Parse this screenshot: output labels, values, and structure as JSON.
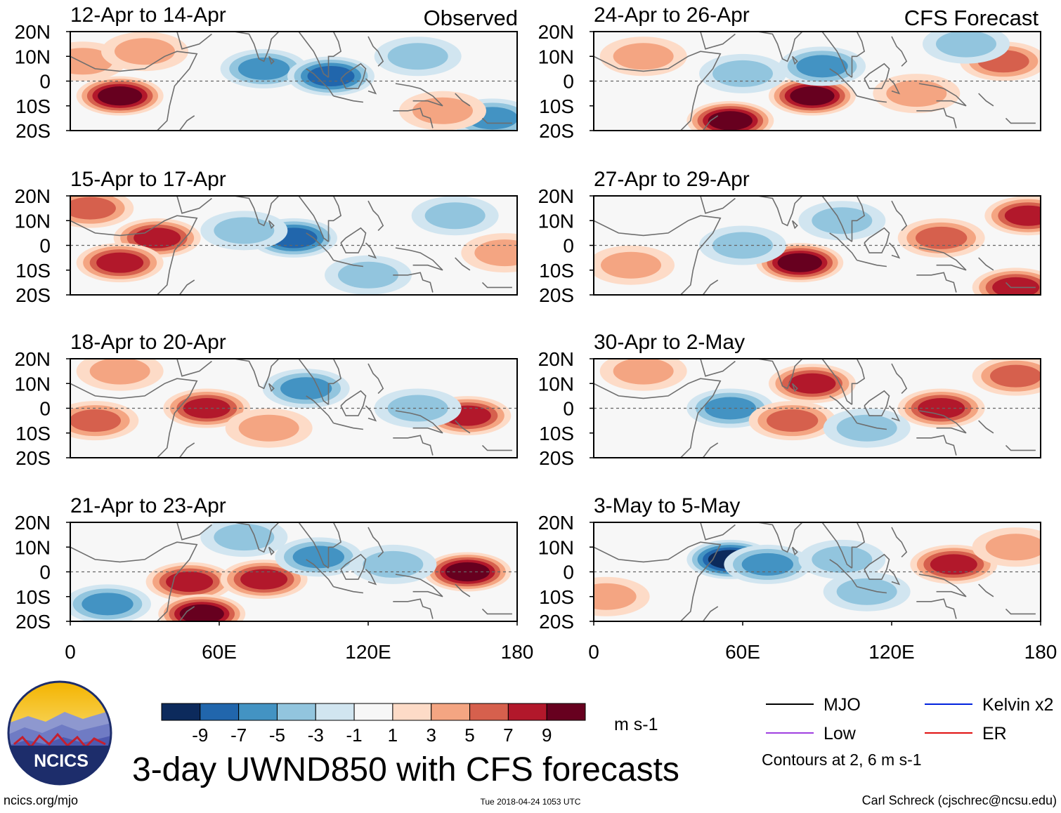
{
  "chart_data": {
    "type": "heatmap",
    "title": "3-day UWND850 with CFS forecasts",
    "variable": "UWND850",
    "units": "m s-1",
    "xlim": [
      0,
      180
    ],
    "ylim": [
      -20,
      20
    ],
    "x_ticks": [
      "0",
      "60E",
      "120E",
      "180"
    ],
    "x_tick_values": [
      0,
      60,
      120,
      180
    ],
    "y_ticks": [
      "20N",
      "10N",
      "0",
      "10S",
      "20S"
    ],
    "y_tick_values": [
      20,
      10,
      0,
      -10,
      -20
    ],
    "colorbar": {
      "levels": [
        "-9",
        "-7",
        "-5",
        "-3",
        "-1",
        "1",
        "3",
        "5",
        "7",
        "9"
      ],
      "colors": [
        "#0c2a5c",
        "#2166ac",
        "#4393c3",
        "#92c5de",
        "#d1e5f0",
        "#f7f7f7",
        "#fddbc7",
        "#f4a582",
        "#d6604d",
        "#b2182b",
        "#67001f"
      ]
    },
    "contour_note": "Contours at 2, 6 m s-1",
    "legend": [
      {
        "name": "MJO",
        "color": "#000000"
      },
      {
        "name": "Kelvin x2",
        "color": "#0022dd"
      },
      {
        "name": "Low",
        "color": "#a040e0"
      },
      {
        "name": "ER",
        "color": "#e01010"
      }
    ],
    "panels": [
      {
        "column": "Observed",
        "label": "12-Apr to 14-Apr",
        "anomalies": [
          {
            "lon": 20,
            "lat": -6,
            "v": 8
          },
          {
            "lon": 5,
            "lat": 8,
            "v": 3
          },
          {
            "lon": 30,
            "lat": 12,
            "v": 3
          },
          {
            "lon": 78,
            "lat": 5,
            "v": -4
          },
          {
            "lon": 105,
            "lat": 2,
            "v": -6
          },
          {
            "lon": 140,
            "lat": 10,
            "v": -3
          },
          {
            "lon": 170,
            "lat": -15,
            "v": -4
          },
          {
            "lon": 150,
            "lat": -12,
            "v": 3
          }
        ]
      },
      {
        "column": "Observed",
        "label": "15-Apr to 17-Apr",
        "anomalies": [
          {
            "lon": 35,
            "lat": 3,
            "v": 7
          },
          {
            "lon": 20,
            "lat": -7,
            "v": 6
          },
          {
            "lon": 8,
            "lat": 15,
            "v": 4
          },
          {
            "lon": 90,
            "lat": 3,
            "v": -7
          },
          {
            "lon": 70,
            "lat": 6,
            "v": -3
          },
          {
            "lon": 155,
            "lat": 12,
            "v": -3
          },
          {
            "lon": 175,
            "lat": -3,
            "v": 3
          },
          {
            "lon": 120,
            "lat": -12,
            "v": -3
          }
        ]
      },
      {
        "column": "Observed",
        "label": "18-Apr to 20-Apr",
        "anomalies": [
          {
            "lon": 55,
            "lat": 0,
            "v": 6
          },
          {
            "lon": 10,
            "lat": -5,
            "v": 4
          },
          {
            "lon": 95,
            "lat": 8,
            "v": -4
          },
          {
            "lon": 160,
            "lat": -3,
            "v": 7
          },
          {
            "lon": 140,
            "lat": 0,
            "v": -3
          },
          {
            "lon": 80,
            "lat": -8,
            "v": 3
          },
          {
            "lon": 20,
            "lat": 15,
            "v": 3
          }
        ]
      },
      {
        "column": "Observed",
        "label": "21-Apr to 23-Apr",
        "anomalies": [
          {
            "lon": 48,
            "lat": -4,
            "v": 7
          },
          {
            "lon": 78,
            "lat": -3,
            "v": 7
          },
          {
            "lon": 160,
            "lat": 0,
            "v": 8
          },
          {
            "lon": 100,
            "lat": 6,
            "v": -4
          },
          {
            "lon": 130,
            "lat": 3,
            "v": -3
          },
          {
            "lon": 15,
            "lat": -13,
            "v": -4
          },
          {
            "lon": 70,
            "lat": 14,
            "v": -3
          },
          {
            "lon": 53,
            "lat": -17,
            "v": 9
          }
        ]
      },
      {
        "column": "CFS Forecast",
        "label": "24-Apr to 26-Apr",
        "anomalies": [
          {
            "lon": 88,
            "lat": -6,
            "v": 9
          },
          {
            "lon": 55,
            "lat": -16,
            "v": 8
          },
          {
            "lon": 92,
            "lat": 6,
            "v": -5
          },
          {
            "lon": 60,
            "lat": 3,
            "v": -3
          },
          {
            "lon": 165,
            "lat": 8,
            "v": 4
          },
          {
            "lon": 130,
            "lat": -5,
            "v": 3
          },
          {
            "lon": 20,
            "lat": 10,
            "v": 3
          },
          {
            "lon": 150,
            "lat": 15,
            "v": -3
          }
        ]
      },
      {
        "column": "CFS Forecast",
        "label": "27-Apr to 29-Apr",
        "anomalies": [
          {
            "lon": 83,
            "lat": -7,
            "v": 9
          },
          {
            "lon": 175,
            "lat": 12,
            "v": 7
          },
          {
            "lon": 60,
            "lat": 0,
            "v": -3
          },
          {
            "lon": 140,
            "lat": 3,
            "v": 4
          },
          {
            "lon": 170,
            "lat": -17,
            "v": 6
          },
          {
            "lon": 15,
            "lat": -8,
            "v": 3
          },
          {
            "lon": 100,
            "lat": 10,
            "v": -3
          }
        ]
      },
      {
        "column": "CFS Forecast",
        "label": "30-Apr to 2-May",
        "anomalies": [
          {
            "lon": 55,
            "lat": 0,
            "v": -5
          },
          {
            "lon": 140,
            "lat": 0,
            "v": 6
          },
          {
            "lon": 88,
            "lat": 10,
            "v": 6
          },
          {
            "lon": 80,
            "lat": -5,
            "v": 4
          },
          {
            "lon": 170,
            "lat": 13,
            "v": 4
          },
          {
            "lon": 110,
            "lat": -8,
            "v": -3
          },
          {
            "lon": 20,
            "lat": 15,
            "v": 3
          }
        ]
      },
      {
        "column": "CFS Forecast",
        "label": "3-May to 5-May",
        "anomalies": [
          {
            "lon": 55,
            "lat": 5,
            "v": -9
          },
          {
            "lon": 70,
            "lat": 3,
            "v": -4
          },
          {
            "lon": 145,
            "lat": 3,
            "v": 6
          },
          {
            "lon": 170,
            "lat": 10,
            "v": 3
          },
          {
            "lon": 110,
            "lat": -8,
            "v": -3
          },
          {
            "lon": 100,
            "lat": 5,
            "v": -3
          },
          {
            "lon": 5,
            "lat": -10,
            "v": 3
          }
        ]
      }
    ]
  },
  "labels": {
    "observed": "Observed",
    "forecast": "CFS Forecast",
    "units": "m s-1",
    "title": "3-day UWND850 with CFS forecasts",
    "contour_note": "Contours at 2, 6 m s-1",
    "site": "ncics.org/mjo",
    "timestamp": "Tue 2018-04-24 1053 UTC",
    "credit": "Carl Schreck (cjschrec@ncsu.edu)",
    "logo_text": "NCICS"
  },
  "colors": {
    "frame": "#000000",
    "coast": "#6e6e6e",
    "equator": "#666666",
    "logo_ring": "#1d2d6b"
  }
}
